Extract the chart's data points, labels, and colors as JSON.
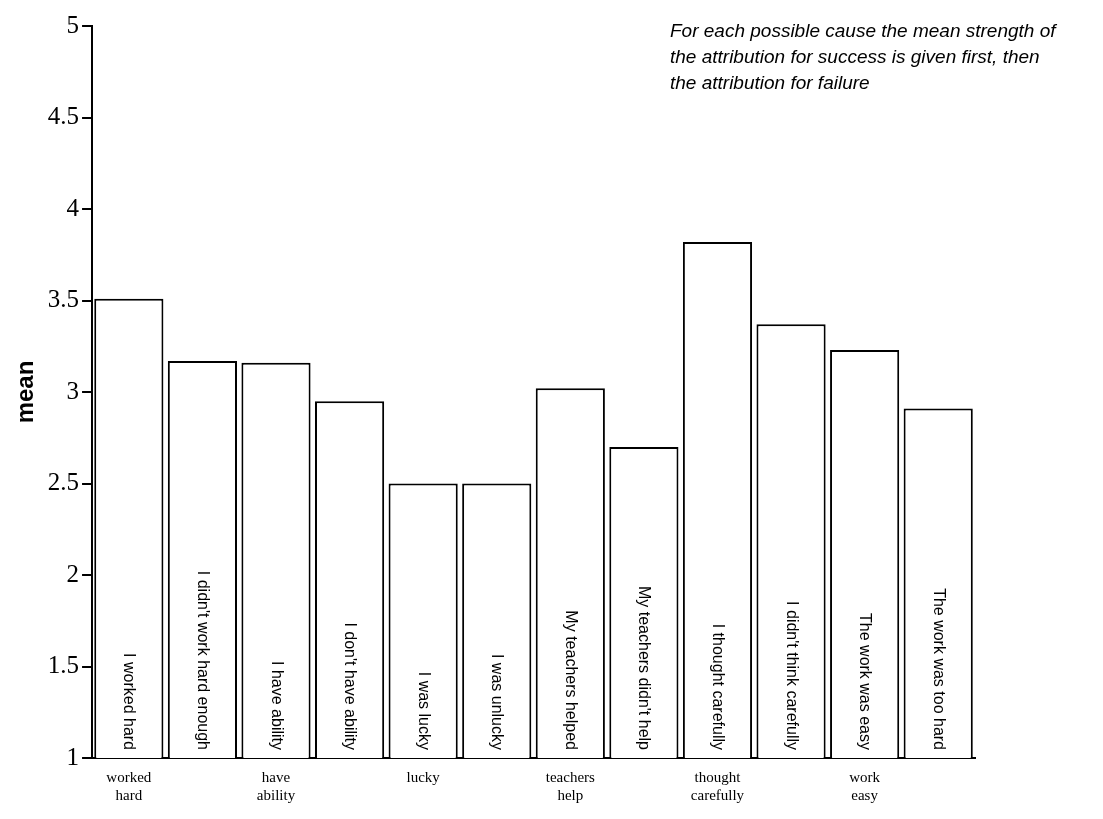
{
  "chart_data": {
    "type": "bar",
    "ylabel": "mean",
    "categories": [
      "worked hard",
      null,
      "have ability",
      null,
      "lucky",
      null,
      "teachers help",
      null,
      "thought carefully",
      null,
      "work easy",
      null
    ],
    "values": [
      3.51,
      3.17,
      3.16,
      2.95,
      2.5,
      2.5,
      3.02,
      2.7,
      3.82,
      3.37,
      3.23,
      2.91
    ],
    "value_labels": [
      "I worked hard",
      "I didn't work hard enough",
      "I have ability",
      "I don't have ability",
      "I was lucky",
      "I was unlucky",
      "My teachers helped",
      "My teachers didn't help",
      "I thought carefully",
      "I didn't think carefully",
      "The work was easy",
      "The work was too hard"
    ],
    "color": "#ffffff",
    "ylim": [
      1,
      5
    ],
    "yticks": [
      1,
      1.5,
      2,
      2.5,
      3,
      3.5,
      4,
      4.5,
      5
    ],
    "grid": false,
    "legend": false,
    "annotations": [
      "For each possible cause the mean strength of the attribution for success is given first, then the attribution for failure"
    ]
  }
}
